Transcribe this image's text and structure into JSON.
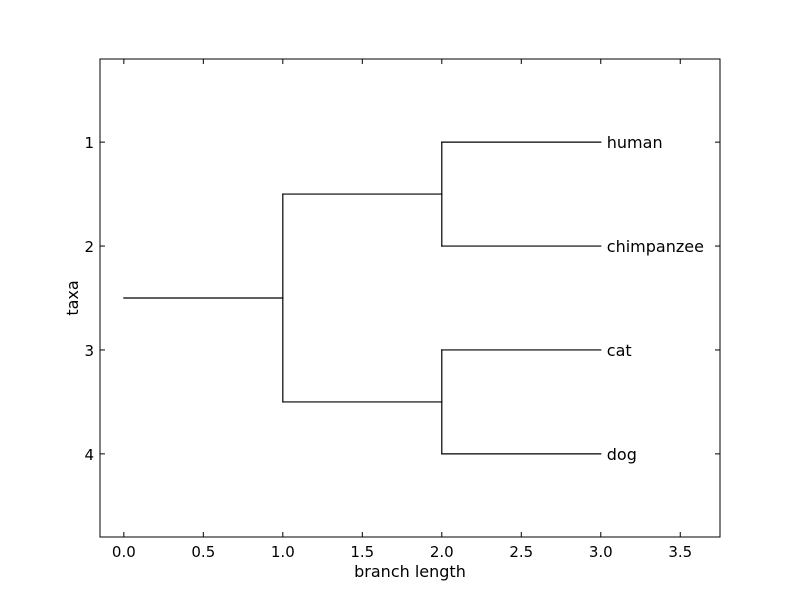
{
  "chart_data": {
    "type": "dendrogram",
    "title": "",
    "xlabel": "branch length",
    "ylabel": "taxa",
    "xlim": [
      -0.15,
      3.75
    ],
    "ylim": [
      4.8,
      0.2
    ],
    "x_ticks": [
      0.0,
      0.5,
      1.0,
      1.5,
      2.0,
      2.5,
      3.0,
      3.5
    ],
    "x_tick_labels": [
      "0.0",
      "0.5",
      "1.0",
      "1.5",
      "2.0",
      "2.5",
      "3.0",
      "3.5"
    ],
    "y_ticks": [
      1,
      2,
      3,
      4
    ],
    "y_tick_labels": [
      "1",
      "2",
      "3",
      "4"
    ],
    "leaves": [
      {
        "label": "human",
        "x": 3.0,
        "y": 1
      },
      {
        "label": "chimpanzee",
        "x": 3.0,
        "y": 2
      },
      {
        "label": "cat",
        "x": 3.0,
        "y": 3
      },
      {
        "label": "dog",
        "x": 3.0,
        "y": 4
      }
    ],
    "branches": [
      {
        "x1": 0.0,
        "y1": 2.5,
        "x2": 1.0,
        "y2": 2.5
      },
      {
        "x1": 1.0,
        "y1": 1.5,
        "x2": 1.0,
        "y2": 3.5
      },
      {
        "x1": 1.0,
        "y1": 1.5,
        "x2": 2.0,
        "y2": 1.5
      },
      {
        "x1": 1.0,
        "y1": 3.5,
        "x2": 2.0,
        "y2": 3.5
      },
      {
        "x1": 2.0,
        "y1": 1.0,
        "x2": 2.0,
        "y2": 2.0
      },
      {
        "x1": 2.0,
        "y1": 1.0,
        "x2": 3.0,
        "y2": 1.0
      },
      {
        "x1": 2.0,
        "y1": 2.0,
        "x2": 3.0,
        "y2": 2.0
      },
      {
        "x1": 2.0,
        "y1": 3.0,
        "x2": 2.0,
        "y2": 4.0
      },
      {
        "x1": 2.0,
        "y1": 3.0,
        "x2": 3.0,
        "y2": 3.0
      },
      {
        "x1": 2.0,
        "y1": 4.0,
        "x2": 3.0,
        "y2": 4.0
      }
    ],
    "grid": false,
    "line_color": "#000000"
  }
}
